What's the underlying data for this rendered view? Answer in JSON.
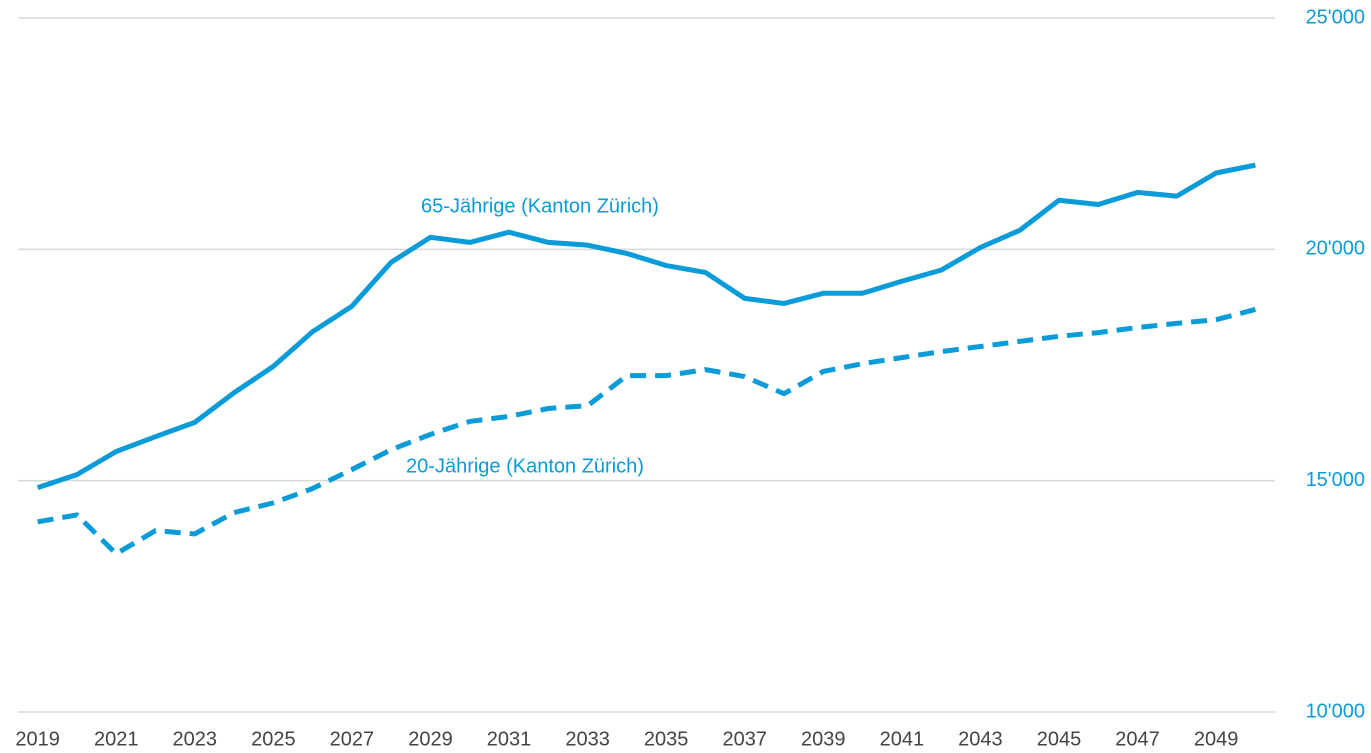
{
  "chart_data": {
    "type": "line",
    "x": [
      2019,
      2020,
      2021,
      2022,
      2023,
      2024,
      2025,
      2026,
      2027,
      2028,
      2029,
      2030,
      2031,
      2032,
      2033,
      2034,
      2035,
      2036,
      2037,
      2038,
      2039,
      2040,
      2041,
      2042,
      2043,
      2044,
      2045,
      2046,
      2047,
      2048,
      2049,
      2050
    ],
    "series": [
      {
        "name": "65-Jährige (Kanton Zürich)",
        "color": "#0a9bd9",
        "style": "solid",
        "values": [
          14850,
          15130,
          15630,
          15950,
          16260,
          16900,
          17470,
          18220,
          18770,
          19720,
          20260,
          20150,
          20370,
          20150,
          20090,
          19910,
          19650,
          19500,
          18940,
          18830,
          19050,
          19050,
          19310,
          19550,
          20040,
          20410,
          21060,
          20970,
          21230,
          21150,
          21650,
          21820
        ]
      },
      {
        "name": "20-Jährige (Kanton Zürich)",
        "color": "#0a9bd9",
        "style": "dashed",
        "values": [
          14110,
          14260,
          13420,
          13920,
          13850,
          14310,
          14520,
          14830,
          15240,
          15670,
          16000,
          16280,
          16390,
          16560,
          16620,
          17270,
          17270,
          17400,
          17250,
          16880,
          17360,
          17530,
          17660,
          17790,
          17900,
          18010,
          18120,
          18200,
          18310,
          18400,
          18480,
          18700
        ]
      }
    ],
    "xlim": [
      2018.5,
      2050.5
    ],
    "xticks": [
      2019,
      2021,
      2023,
      2025,
      2027,
      2029,
      2031,
      2033,
      2035,
      2037,
      2039,
      2041,
      2043,
      2045,
      2047,
      2049
    ],
    "ylim": [
      10000,
      25000
    ],
    "yticks": [
      {
        "value": 10000,
        "label": "10'000"
      },
      {
        "value": 15000,
        "label": "15'000"
      },
      {
        "value": 20000,
        "label": "20'000"
      },
      {
        "value": 25000,
        "label": "25'000"
      }
    ],
    "grid": true,
    "y_axis_side": "right"
  }
}
